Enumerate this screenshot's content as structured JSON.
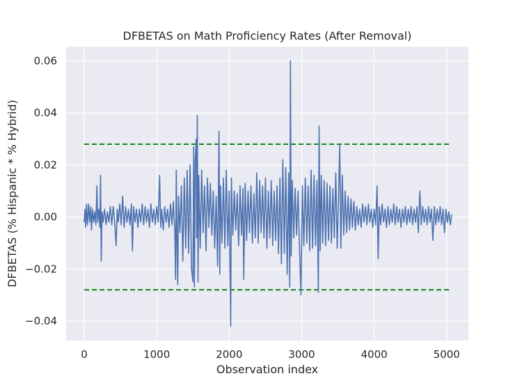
{
  "chart_data": {
    "type": "line",
    "title": "DFBETAS on Math Proficiency Rates (After Removal)",
    "xlabel": "Observation index",
    "ylabel": "DFBETAS (% Hispanic * % Hybrid)",
    "xlim": [
      -250,
      5300
    ],
    "ylim": [
      -0.0475,
      0.0655
    ],
    "x_ticks": [
      0,
      1000,
      2000,
      3000,
      4000,
      5000
    ],
    "x_tick_labels": [
      "0",
      "1000",
      "2000",
      "3000",
      "4000",
      "5000"
    ],
    "y_ticks": [
      -0.04,
      -0.02,
      0.0,
      0.02,
      0.04,
      0.06
    ],
    "y_tick_labels": [
      "−0.04",
      "−0.02",
      "0.00",
      "0.02",
      "0.04",
      "0.06"
    ],
    "grid": true,
    "series": [
      {
        "color": "#4c72b0",
        "points": [
          [
            0,
            -0.002
          ],
          [
            10,
            0.003
          ],
          [
            20,
            -0.004
          ],
          [
            30,
            0.005
          ],
          [
            45,
            -0.003
          ],
          [
            60,
            0.005
          ],
          [
            75,
            -0.002
          ],
          [
            90,
            0.004
          ],
          [
            100,
            -0.005
          ],
          [
            115,
            0.003
          ],
          [
            130,
            -0.002
          ],
          [
            145,
            0.002
          ],
          [
            160,
            -0.003
          ],
          [
            175,
            0.012
          ],
          [
            185,
            -0.002
          ],
          [
            200,
            0.003
          ],
          [
            215,
            -0.004
          ],
          [
            225,
            0.016
          ],
          [
            235,
            -0.017
          ],
          [
            245,
            0.002
          ],
          [
            260,
            -0.002
          ],
          [
            280,
            0.003
          ],
          [
            300,
            -0.003
          ],
          [
            320,
            0.002
          ],
          [
            340,
            -0.002
          ],
          [
            360,
            0.004
          ],
          [
            380,
            -0.003
          ],
          [
            400,
            0.004
          ],
          [
            420,
            -0.002
          ],
          [
            440,
            -0.011
          ],
          [
            455,
            0.003
          ],
          [
            470,
            -0.002
          ],
          [
            490,
            0.005
          ],
          [
            510,
            -0.003
          ],
          [
            530,
            0.008
          ],
          [
            550,
            -0.004
          ],
          [
            570,
            0.004
          ],
          [
            590,
            -0.002
          ],
          [
            610,
            0.003
          ],
          [
            630,
            -0.003
          ],
          [
            650,
            0.005
          ],
          [
            665,
            -0.013
          ],
          [
            680,
            0.004
          ],
          [
            700,
            -0.002
          ],
          [
            720,
            0.003
          ],
          [
            740,
            -0.004
          ],
          [
            760,
            0.003
          ],
          [
            780,
            -0.002
          ],
          [
            800,
            0.005
          ],
          [
            820,
            -0.003
          ],
          [
            840,
            0.004
          ],
          [
            860,
            -0.002
          ],
          [
            880,
            0.003
          ],
          [
            900,
            -0.004
          ],
          [
            920,
            0.005
          ],
          [
            940,
            -0.002
          ],
          [
            960,
            0.003
          ],
          [
            980,
            -0.003
          ],
          [
            1000,
            0.004
          ],
          [
            1020,
            -0.002
          ],
          [
            1040,
            0.016
          ],
          [
            1055,
            -0.004
          ],
          [
            1070,
            0.003
          ],
          [
            1090,
            -0.005
          ],
          [
            1110,
            0.004
          ],
          [
            1130,
            -0.002
          ],
          [
            1150,
            0.003
          ],
          [
            1170,
            -0.004
          ],
          [
            1190,
            0.005
          ],
          [
            1210,
            -0.003
          ],
          [
            1230,
            0.006
          ],
          [
            1250,
            -0.006
          ],
          [
            1260,
            -0.024
          ],
          [
            1270,
            0.018
          ],
          [
            1280,
            -0.01
          ],
          [
            1290,
            -0.026
          ],
          [
            1300,
            0.008
          ],
          [
            1320,
            -0.006
          ],
          [
            1340,
            0.012
          ],
          [
            1360,
            -0.017
          ],
          [
            1380,
            0.015
          ],
          [
            1400,
            -0.012
          ],
          [
            1420,
            0.018
          ],
          [
            1440,
            -0.014
          ],
          [
            1460,
            0.02
          ],
          [
            1480,
            -0.02
          ],
          [
            1500,
            -0.025
          ],
          [
            1510,
            0.027
          ],
          [
            1520,
            -0.027
          ],
          [
            1530,
            0.021
          ],
          [
            1545,
            0.03
          ],
          [
            1550,
            -0.008
          ],
          [
            1560,
            0.039
          ],
          [
            1570,
            -0.025
          ],
          [
            1580,
            0.016
          ],
          [
            1600,
            -0.012
          ],
          [
            1620,
            0.018
          ],
          [
            1640,
            -0.006
          ],
          [
            1660,
            0.012
          ],
          [
            1680,
            -0.013
          ],
          [
            1700,
            0.015
          ],
          [
            1720,
            -0.004
          ],
          [
            1740,
            0.013
          ],
          [
            1760,
            -0.007
          ],
          [
            1780,
            0.01
          ],
          [
            1800,
            -0.012
          ],
          [
            1820,
            0.008
          ],
          [
            1840,
            -0.019
          ],
          [
            1860,
            0.033
          ],
          [
            1870,
            -0.022
          ],
          [
            1880,
            0.012
          ],
          [
            1900,
            -0.01
          ],
          [
            1920,
            0.015
          ],
          [
            1940,
            -0.012
          ],
          [
            1960,
            0.018
          ],
          [
            1980,
            -0.011
          ],
          [
            2000,
            0.01
          ],
          [
            2010,
            -0.02
          ],
          [
            2020,
            -0.042
          ],
          [
            2030,
            0.015
          ],
          [
            2050,
            -0.007
          ],
          [
            2070,
            0.01
          ],
          [
            2090,
            -0.005
          ],
          [
            2110,
            0.009
          ],
          [
            2130,
            -0.011
          ],
          [
            2150,
            0.012
          ],
          [
            2170,
            -0.007
          ],
          [
            2190,
            0.011
          ],
          [
            2200,
            -0.024
          ],
          [
            2220,
            0.013
          ],
          [
            2240,
            -0.009
          ],
          [
            2260,
            0.01
          ],
          [
            2280,
            -0.006
          ],
          [
            2300,
            0.012
          ],
          [
            2320,
            -0.01
          ],
          [
            2340,
            0.009
          ],
          [
            2360,
            -0.008
          ],
          [
            2380,
            0.017
          ],
          [
            2400,
            -0.01
          ],
          [
            2420,
            0.014
          ],
          [
            2440,
            -0.006
          ],
          [
            2460,
            0.012
          ],
          [
            2480,
            -0.008
          ],
          [
            2500,
            0.015
          ],
          [
            2520,
            -0.012
          ],
          [
            2540,
            0.01
          ],
          [
            2560,
            -0.008
          ],
          [
            2580,
            0.014
          ],
          [
            2600,
            -0.011
          ],
          [
            2620,
            0.01
          ],
          [
            2640,
            -0.009
          ],
          [
            2660,
            0.012
          ],
          [
            2680,
            -0.014
          ],
          [
            2700,
            0.015
          ],
          [
            2720,
            -0.018
          ],
          [
            2740,
            0.022
          ],
          [
            2760,
            -0.014
          ],
          [
            2780,
            0.019
          ],
          [
            2800,
            -0.022
          ],
          [
            2820,
            0.017
          ],
          [
            2835,
            -0.027
          ],
          [
            2845,
            0.06
          ],
          [
            2855,
            -0.015
          ],
          [
            2870,
            0.014
          ],
          [
            2890,
            -0.008
          ],
          [
            2910,
            0.011
          ],
          [
            2930,
            -0.007
          ],
          [
            2950,
            0.01
          ],
          [
            2970,
            -0.012
          ],
          [
            2990,
            -0.03
          ],
          [
            3010,
            0.012
          ],
          [
            3030,
            -0.011
          ],
          [
            3050,
            0.015
          ],
          [
            3070,
            -0.01
          ],
          [
            3090,
            0.012
          ],
          [
            3110,
            -0.013
          ],
          [
            3130,
            0.018
          ],
          [
            3150,
            -0.012
          ],
          [
            3170,
            0.016
          ],
          [
            3190,
            -0.011
          ],
          [
            3210,
            0.014
          ],
          [
            3230,
            -0.029
          ],
          [
            3240,
            0.035
          ],
          [
            3255,
            -0.013
          ],
          [
            3270,
            0.016
          ],
          [
            3290,
            -0.01
          ],
          [
            3310,
            0.014
          ],
          [
            3330,
            -0.011
          ],
          [
            3350,
            0.013
          ],
          [
            3370,
            -0.009
          ],
          [
            3390,
            0.012
          ],
          [
            3410,
            -0.01
          ],
          [
            3430,
            0.011
          ],
          [
            3450,
            -0.008
          ],
          [
            3470,
            0.017
          ],
          [
            3490,
            -0.012
          ],
          [
            3510,
            0.01
          ],
          [
            3525,
            0.028
          ],
          [
            3540,
            -0.012
          ],
          [
            3560,
            0.016
          ],
          [
            3580,
            -0.007
          ],
          [
            3600,
            0.01
          ],
          [
            3620,
            -0.006
          ],
          [
            3640,
            0.008
          ],
          [
            3660,
            -0.005
          ],
          [
            3680,
            0.007
          ],
          [
            3700,
            -0.004
          ],
          [
            3720,
            0.006
          ],
          [
            3740,
            -0.005
          ],
          [
            3760,
            0.004
          ],
          [
            3780,
            -0.003
          ],
          [
            3800,
            0.003
          ],
          [
            3820,
            -0.004
          ],
          [
            3840,
            0.005
          ],
          [
            3860,
            -0.002
          ],
          [
            3880,
            0.004
          ],
          [
            3900,
            -0.003
          ],
          [
            3920,
            0.005
          ],
          [
            3940,
            -0.002
          ],
          [
            3960,
            0.003
          ],
          [
            3980,
            -0.004
          ],
          [
            4000,
            0.003
          ],
          [
            4020,
            -0.003
          ],
          [
            4040,
            0.012
          ],
          [
            4055,
            -0.016
          ],
          [
            4070,
            0.004
          ],
          [
            4090,
            -0.003
          ],
          [
            4110,
            0.005
          ],
          [
            4130,
            -0.002
          ],
          [
            4150,
            0.003
          ],
          [
            4170,
            -0.004
          ],
          [
            4190,
            0.004
          ],
          [
            4210,
            -0.003
          ],
          [
            4230,
            0.003
          ],
          [
            4250,
            -0.002
          ],
          [
            4270,
            0.005
          ],
          [
            4290,
            -0.003
          ],
          [
            4310,
            0.004
          ],
          [
            4330,
            -0.002
          ],
          [
            4350,
            0.003
          ],
          [
            4370,
            -0.004
          ],
          [
            4390,
            0.003
          ],
          [
            4410,
            -0.002
          ],
          [
            4430,
            0.004
          ],
          [
            4450,
            -0.003
          ],
          [
            4470,
            0.003
          ],
          [
            4490,
            -0.002
          ],
          [
            4510,
            0.004
          ],
          [
            4530,
            -0.003
          ],
          [
            4550,
            0.003
          ],
          [
            4570,
            -0.002
          ],
          [
            4590,
            0.004
          ],
          [
            4610,
            -0.006
          ],
          [
            4630,
            0.01
          ],
          [
            4650,
            -0.003
          ],
          [
            4670,
            0.004
          ],
          [
            4690,
            -0.002
          ],
          [
            4710,
            0.003
          ],
          [
            4730,
            -0.003
          ],
          [
            4750,
            0.004
          ],
          [
            4770,
            -0.002
          ],
          [
            4790,
            0.003
          ],
          [
            4810,
            -0.009
          ],
          [
            4830,
            0.004
          ],
          [
            4850,
            -0.003
          ],
          [
            4870,
            0.003
          ],
          [
            4890,
            -0.002
          ],
          [
            4910,
            0.004
          ],
          [
            4930,
            -0.003
          ],
          [
            4950,
            0.003
          ],
          [
            4970,
            -0.006
          ],
          [
            4990,
            0.003
          ],
          [
            5010,
            -0.002
          ],
          [
            5030,
            0.002
          ],
          [
            5050,
            -0.003
          ],
          [
            5070,
            0.001
          ]
        ]
      }
    ],
    "thresholds": {
      "color": "#008000",
      "x_range": [
        0,
        5060
      ],
      "values": [
        0.028,
        -0.028
      ]
    }
  }
}
